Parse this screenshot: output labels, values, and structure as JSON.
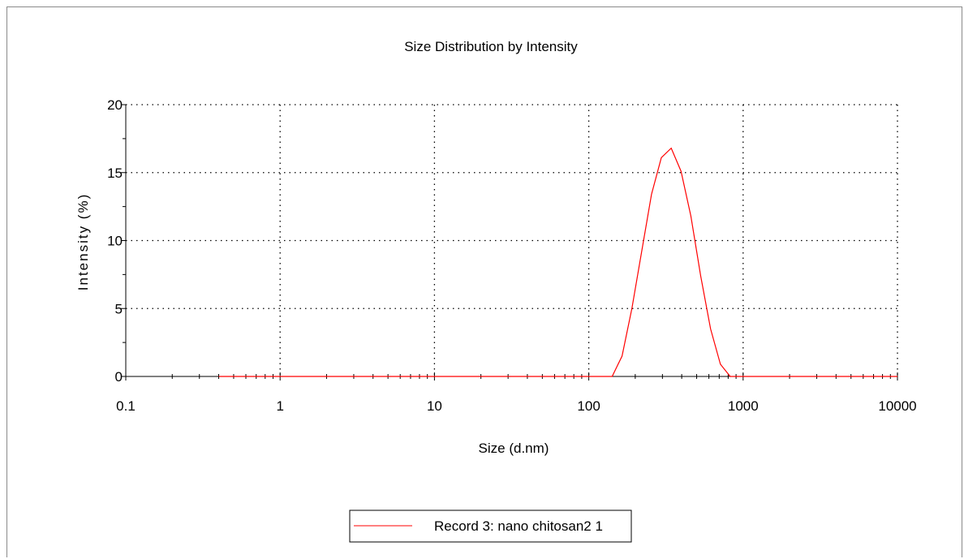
{
  "chart_data": {
    "type": "line",
    "title": "Size Distribution by Intensity",
    "xlabel": "Size (d.nm)",
    "ylabel": "Intensity (%)",
    "x_scale": "log",
    "xlim": [
      0.1,
      10000
    ],
    "ylim": [
      0,
      20
    ],
    "x_ticks": [
      0.1,
      1,
      10,
      100,
      1000,
      10000
    ],
    "x_tick_labels": [
      "0.1",
      "1",
      "10",
      "100",
      "1000",
      "10000"
    ],
    "y_ticks": [
      0,
      5,
      10,
      15,
      20
    ],
    "y_tick_labels": [
      "0",
      "5",
      "10",
      "15",
      "20"
    ],
    "grid": true,
    "legend_position": "bottom-center",
    "series": [
      {
        "name": "Record 3: nano chitosan2 1",
        "color": "#ff0000",
        "x": [
          0.4,
          100,
          141.8,
          164.2,
          190.1,
          220.2,
          255.0,
          295.3,
          342.0,
          396.1,
          458.7,
          531.2,
          615.1,
          712.4,
          825.0,
          10000
        ],
        "y": [
          0,
          0,
          0,
          1.5,
          5.0,
          9.2,
          13.4,
          16.1,
          16.8,
          15.1,
          11.8,
          7.4,
          3.5,
          0.9,
          0,
          0
        ]
      }
    ]
  }
}
